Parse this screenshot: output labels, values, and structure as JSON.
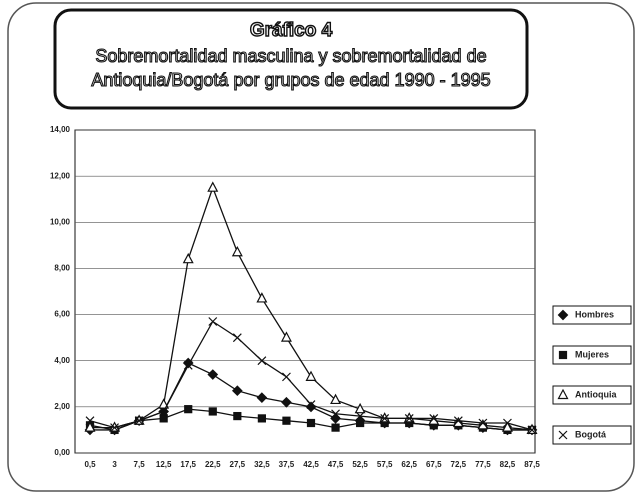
{
  "chart_data": {
    "type": "line",
    "title": "Gráfico 4",
    "subtitle": "Sobremortalidad masculina y sobremortalidad de Antioquia/Bogotá por grupos de edad 1990 - 1995",
    "categories": [
      "0,5",
      "3",
      "7,5",
      "12,5",
      "17,5",
      "22,5",
      "27,5",
      "32,5",
      "37,5",
      "42,5",
      "47,5",
      "52,5",
      "57,5",
      "62,5",
      "67,5",
      "72,5",
      "77,5",
      "82,5",
      "87,5"
    ],
    "series": [
      {
        "name": "Hombres",
        "color": "#111111",
        "marker": "diamond",
        "values": [
          1.0,
          1.0,
          1.4,
          1.8,
          3.9,
          3.4,
          2.7,
          2.4,
          2.2,
          2.0,
          1.5,
          1.4,
          1.3,
          1.3,
          1.2,
          1.2,
          1.1,
          1.0,
          1.0
        ]
      },
      {
        "name": "Mujeres",
        "color": "#111111",
        "marker": "square",
        "values": [
          1.2,
          1.0,
          1.4,
          1.5,
          1.9,
          1.8,
          1.6,
          1.5,
          1.4,
          1.3,
          1.1,
          1.3,
          1.3,
          1.3,
          1.2,
          1.2,
          1.1,
          1.0,
          1.0
        ]
      },
      {
        "name": "Antioquia",
        "color": "#111111",
        "marker": "triangle",
        "values": [
          1.1,
          1.1,
          1.4,
          2.1,
          8.4,
          11.5,
          8.7,
          6.7,
          5.0,
          3.3,
          2.3,
          1.9,
          1.5,
          1.5,
          1.4,
          1.3,
          1.2,
          1.1,
          1.0
        ]
      },
      {
        "name": "Bogotá",
        "color": "#111111",
        "marker": "x",
        "values": [
          1.4,
          1.1,
          1.4,
          1.8,
          3.8,
          5.7,
          5.0,
          4.0,
          3.3,
          2.1,
          1.7,
          1.6,
          1.5,
          1.5,
          1.5,
          1.4,
          1.3,
          1.3,
          1.0
        ]
      }
    ],
    "ylim": [
      0,
      14
    ],
    "yticks": [
      {
        "value": 0,
        "label": "0,00"
      },
      {
        "value": 2,
        "label": "2,00"
      },
      {
        "value": 4,
        "label": "4,00"
      },
      {
        "value": 6,
        "label": "6,00"
      },
      {
        "value": 8,
        "label": "8,00"
      },
      {
        "value": 10,
        "label": "10,00"
      },
      {
        "value": 12,
        "label": "12,00"
      },
      {
        "value": 14,
        "label": "14,00"
      }
    ],
    "grid": true
  }
}
